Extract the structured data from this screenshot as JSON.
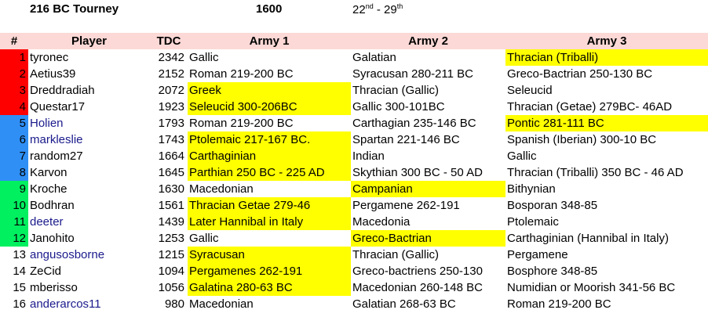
{
  "header": {
    "tourney": "216 BC Tourney",
    "year": "1600",
    "date_start": "22",
    "date_start_sup": "nd",
    "date_sep": " - 29",
    "date_end_sup": "th"
  },
  "columns": [
    "#",
    "Player",
    "TDC",
    "Army 1",
    "Army 2",
    "Army 3"
  ],
  "colors": {
    "red": "#ff0000",
    "blue": "#2f8ff5",
    "green": "#00f060",
    "yellow": "#ffff00",
    "header_bg": "#fcd9d6",
    "link": "#1a1a8c"
  },
  "rows": [
    {
      "rank": "1",
      "player": "tyronec",
      "tdc": "2342",
      "a1": "Gallic",
      "a2": "Galatian",
      "a3": "Thracian (Triballi)"
    },
    {
      "rank": "2",
      "player": "Aetius39",
      "tdc": "2152",
      "a1": "Roman 219-200 BC",
      "a2": "Syracusan 280-211 BC",
      "a3": "Greco-Bactrian 250-130 BC"
    },
    {
      "rank": "3",
      "player": "Dreddradiah",
      "tdc": "2072",
      "a1": "Greek",
      "a2": "Thracian (Gallic)",
      "a3": "Seleucid"
    },
    {
      "rank": "4",
      "player": "Questar17",
      "tdc": "1923",
      "a1": "Seleucid 300-206BC",
      "a2": "Gallic 300-101BC",
      "a3": "Thracian (Getae) 279BC- 46AD"
    },
    {
      "rank": "5",
      "player": "Holien",
      "tdc": "1793",
      "a1": "Roman 219-200 BC",
      "a2": "Carthagian 235-146 BC",
      "a3": "Pontic 281-111 BC"
    },
    {
      "rank": "6",
      "player": "markleslie",
      "tdc": "1743",
      "a1": "Ptolemaic 217-167 BC.",
      "a2": "Spartan 221-146 BC",
      "a3": "Spanish (Iberian) 300-10 BC"
    },
    {
      "rank": "7",
      "player": "random27",
      "tdc": "1664",
      "a1": "Carthaginian",
      "a2": "Indian",
      "a3": "Gallic"
    },
    {
      "rank": "8",
      "player": "Karvon",
      "tdc": "1645",
      "a1": "Parthian 250 BC - 225 AD",
      "a2": "Skythian 300 BC - 50 AD",
      "a3": "Thracian (Triballi) 350 BC - 46 AD"
    },
    {
      "rank": "9",
      "player": "Kroche",
      "tdc": "1630",
      "a1": "Macedonian",
      "a2": "Campanian",
      "a3": "Bithynian"
    },
    {
      "rank": "10",
      "player": "Bodhran",
      "tdc": "1561",
      "a1": "Thracian Getae 279-46",
      "a2": "Pergamene 262-191",
      "a3": "Bosporan 348-85"
    },
    {
      "rank": "11",
      "player": "deeter",
      "tdc": "1439",
      "a1": "Later Hannibal in Italy",
      "a2": "Macedonia",
      "a3": "Ptolemaic"
    },
    {
      "rank": "12",
      "player": "Janohito",
      "tdc": "1253",
      "a1": "Gallic",
      "a2": "Greco-Bactrian",
      "a3": "Carthaginian (Hannibal in Italy)"
    },
    {
      "rank": "13",
      "player": "angusosborne",
      "tdc": "1215",
      "a1": "Syracusan",
      "a2": "Thracian (Gallic)",
      "a3": "Pergamene"
    },
    {
      "rank": "14",
      "player": "ZeCid",
      "tdc": "1094",
      "a1": "Pergamenes 262-191",
      "a2": "Greco-bactriens 250-130",
      "a3": "Bosphore 348-85"
    },
    {
      "rank": "15",
      "player": "mberisso",
      "tdc": "1056",
      "a1": "Galatina 280-63 BC",
      "a2": "Macedonian 260-148 BC",
      "a3": "Numidian or Moorish 341-56 BC"
    },
    {
      "rank": "16",
      "player": "anderarcos11",
      "tdc": "980",
      "a1": "Macedonian",
      "a2": "Galatian 268-63 BC",
      "a3": "Roman 219-200 BC"
    }
  ]
}
